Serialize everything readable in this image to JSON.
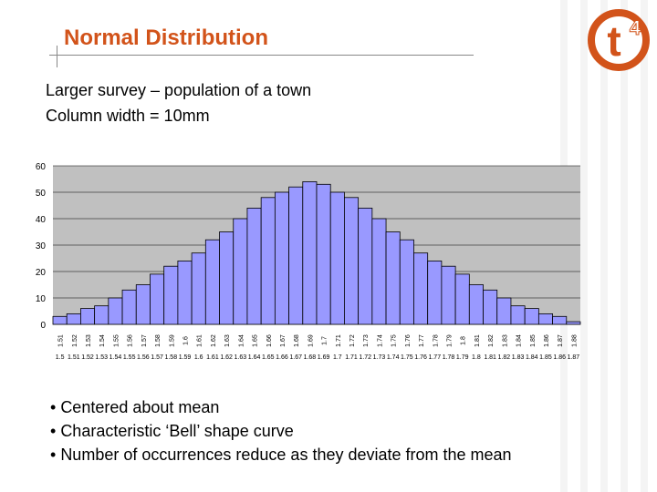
{
  "slide": {
    "title": "Normal Distribution",
    "subtitle_lines": [
      "Larger survey – population of a town",
      "Column width = 10mm"
    ],
    "bullets": [
      "Centered about mean",
      "Characteristic ‘Bell’ shape curve",
      "Number of occurrences reduce as they deviate from the mean"
    ],
    "logo": {
      "text": "t",
      "superscript": "4",
      "icon": "t4-logo-icon",
      "color": "#d2531a"
    }
  },
  "chart_data": {
    "type": "bar",
    "title": "",
    "xlabel": "",
    "ylabel": "",
    "ylim": [
      0,
      60
    ],
    "yticks": [
      0,
      10,
      20,
      30,
      40,
      50,
      60
    ],
    "grid": true,
    "bar_color": "#9999ff",
    "plot_background": "#c0c0c0",
    "categories": [
      "1.5 - 1.51",
      "1.51 - 1.52",
      "1.52 - 1.53",
      "1.53 - 1.54",
      "1.54 - 1.55",
      "1.55 - 1.56",
      "1.56 - 1.57",
      "1.57 - 1.58",
      "1.58 - 1.59",
      "1.59 - 1.6",
      "1.6 - 1.61",
      "1.61 - 1.62",
      "1.62 - 1.63",
      "1.63 - 1.64",
      "1.64 - 1.65",
      "1.65 - 1.66",
      "1.66 - 1.67",
      "1.67 - 1.68",
      "1.68 - 1.69",
      "1.69 - 1.7",
      "1.7 - 1.71",
      "1.71 - 1.72",
      "1.72 - 1.73",
      "1.73 - 1.74",
      "1.74 - 1.75",
      "1.75 - 1.76",
      "1.76 - 1.77",
      "1.77 - 1.78",
      "1.78 - 1.79",
      "1.79 - 1.8",
      "1.8 - 1.81",
      "1.81 - 1.82",
      "1.82 - 1.83",
      "1.83 - 1.84",
      "1.84 - 1.85",
      "1.85 - 1.86",
      "1.86 - 1.87",
      "1.87 - 1.88"
    ],
    "values": [
      3,
      4,
      6,
      7,
      10,
      13,
      15,
      19,
      22,
      24,
      27,
      32,
      35,
      40,
      44,
      48,
      50,
      52,
      54,
      53,
      50,
      48,
      44,
      40,
      35,
      32,
      27,
      24,
      22,
      19,
      15,
      13,
      10,
      7,
      6,
      4,
      3,
      1
    ]
  }
}
